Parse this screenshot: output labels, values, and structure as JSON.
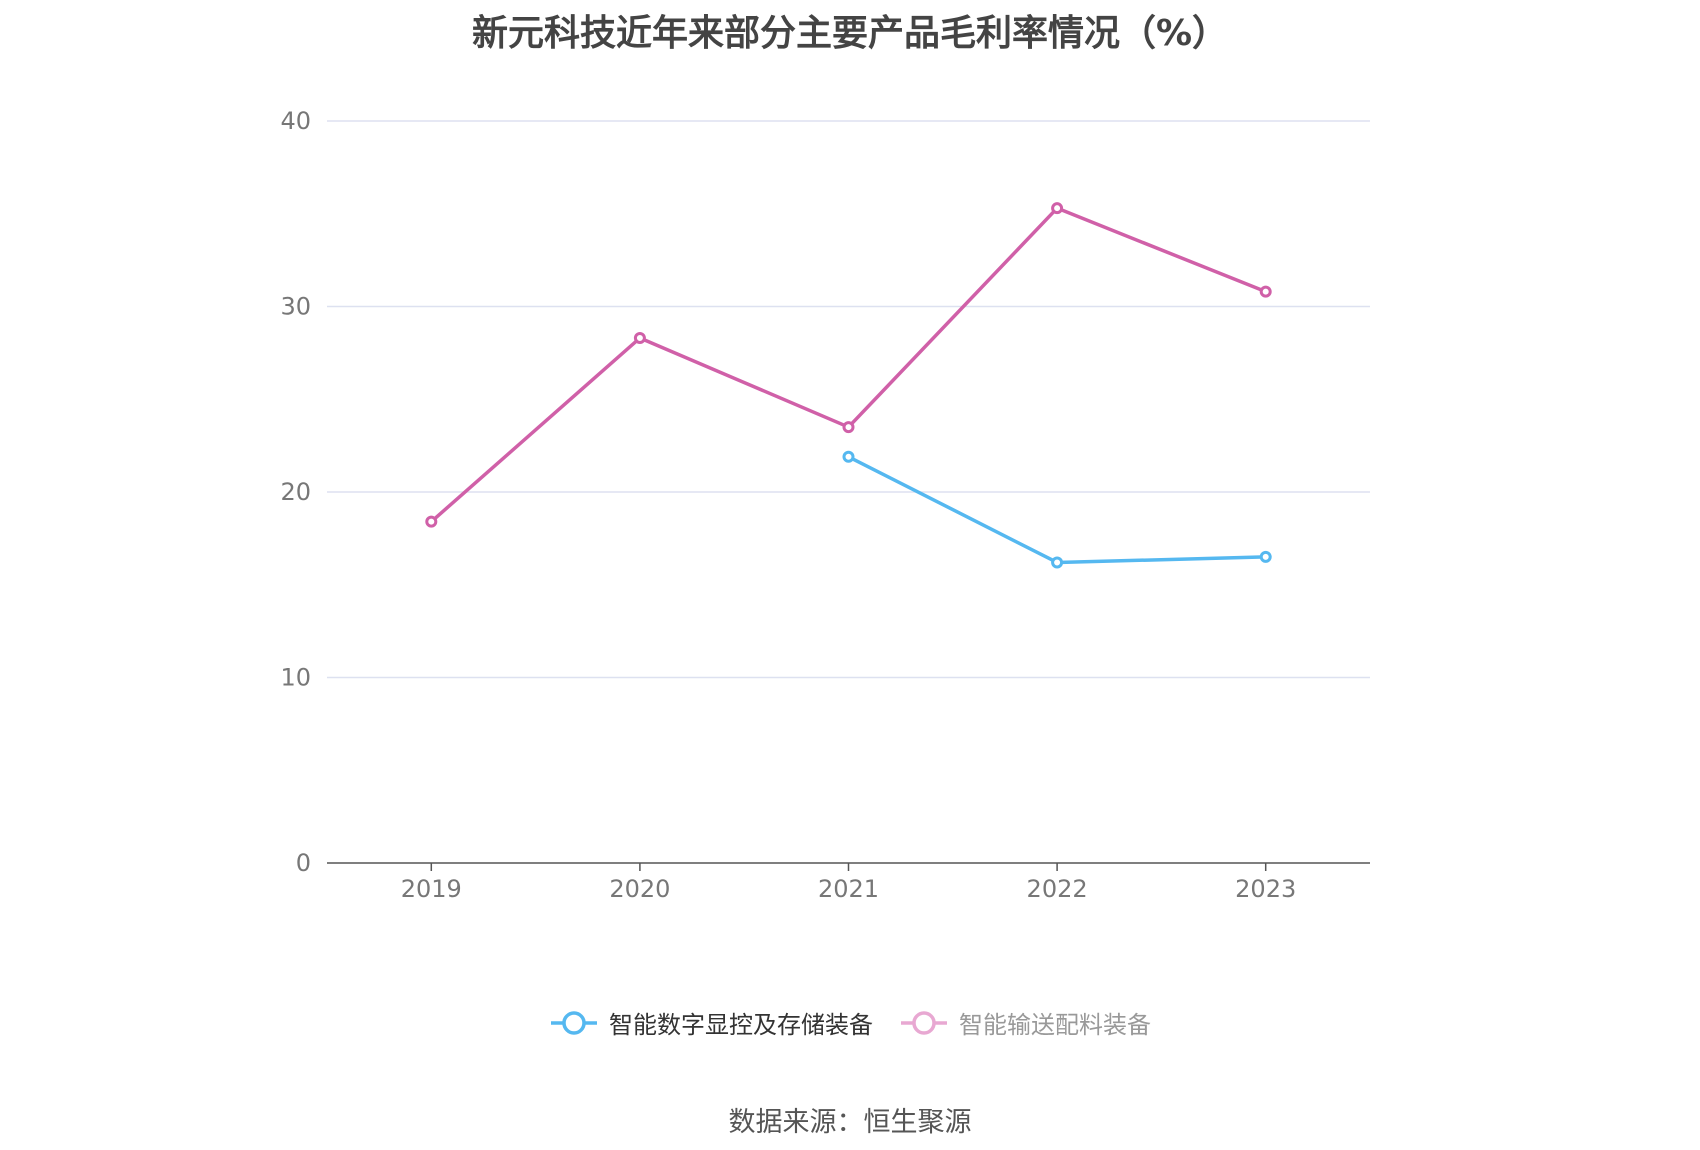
{
  "title": "新元科技近年来部分主要产品毛利率情况（%）",
  "source": "数据来源：恒生聚源",
  "colors": {
    "grid": "#dde1f0",
    "axis": "#555555",
    "tick_text": "#777777"
  },
  "chart_data": {
    "type": "line",
    "title": "新元科技近年来部分主要产品毛利率情况（%）",
    "xlabel": "",
    "ylabel": "",
    "categories": [
      "2019",
      "2020",
      "2021",
      "2022",
      "2023"
    ],
    "yticks": [
      0,
      10,
      20,
      30,
      40
    ],
    "ylim": [
      0,
      40
    ],
    "grid": true,
    "legend_position": "bottom-center",
    "series": [
      {
        "name": "智能数字显控及存储装备",
        "color": "#55b8f0",
        "legend_label_color": "#333333",
        "values": [
          null,
          null,
          21.9,
          16.2,
          16.5
        ]
      },
      {
        "name": "智能输送配料装备",
        "color": "#d060a8",
        "legend_marker_color": "#e8a8d2",
        "legend_label_color": "#999999",
        "values": [
          18.4,
          28.3,
          23.5,
          35.3,
          30.8
        ]
      }
    ]
  }
}
